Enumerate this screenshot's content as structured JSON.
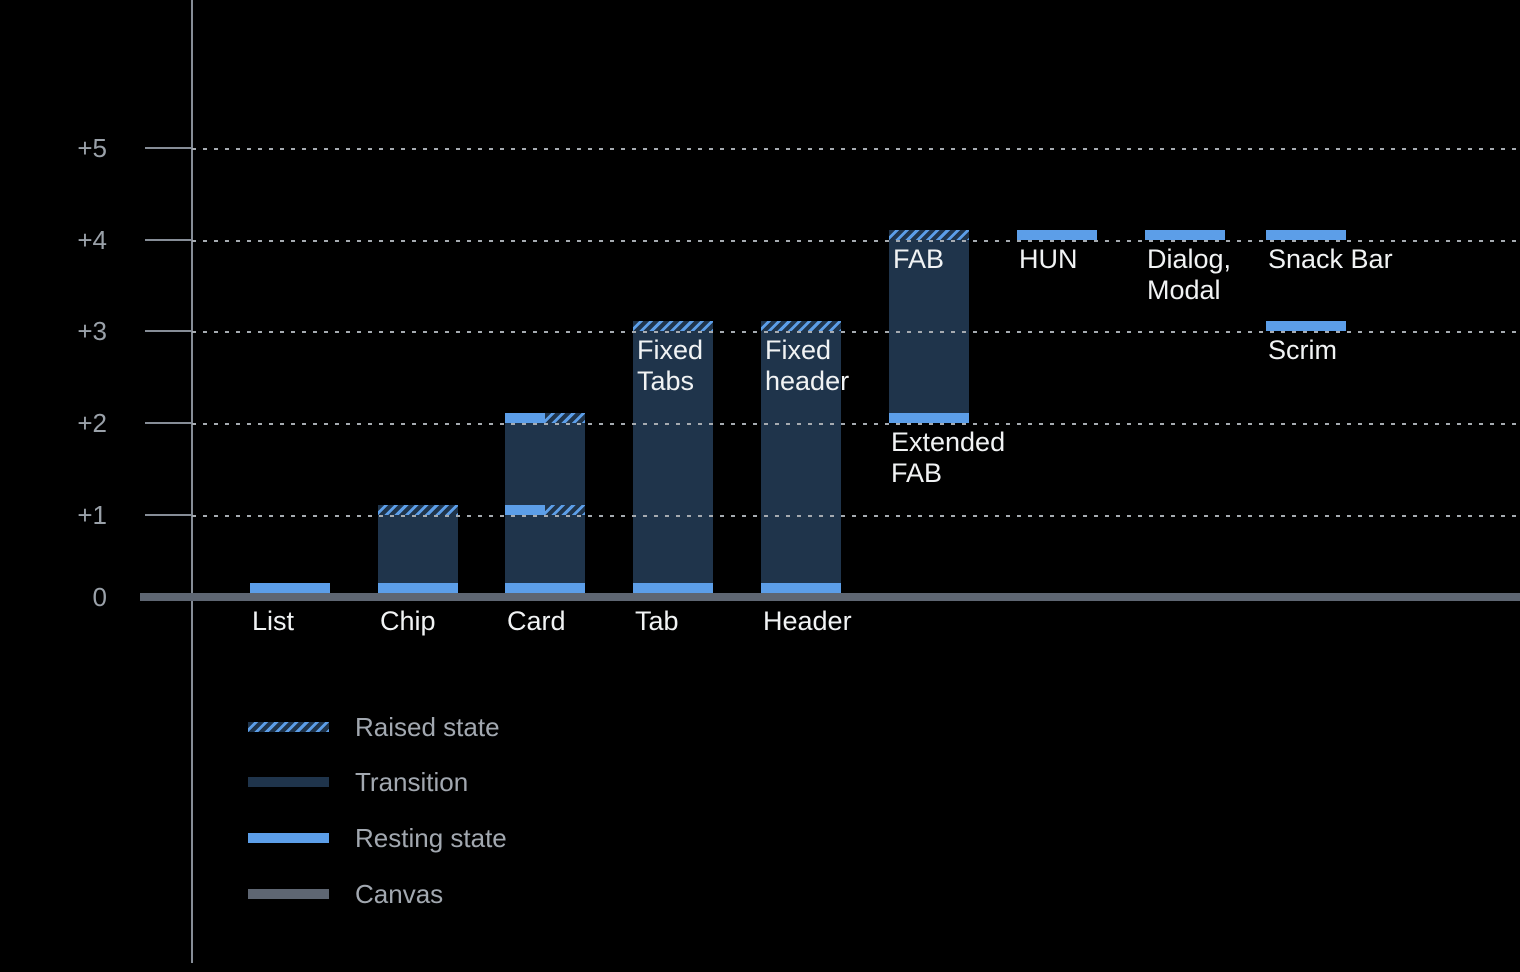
{
  "chart_data": {
    "type": "bar",
    "title": "",
    "grid": "dotted horizontal gridlines, dark background",
    "ylim": [
      0,
      5
    ],
    "yticks": [
      {
        "label": "+5",
        "value": 5
      },
      {
        "label": "+4",
        "value": 4
      },
      {
        "label": "+3",
        "value": 3
      },
      {
        "label": "+2",
        "value": 2
      },
      {
        "label": "+1",
        "value": 1
      },
      {
        "label": "0",
        "value": 0
      }
    ],
    "bars": [
      {
        "name": "list",
        "col": 0,
        "axis_label": "List",
        "bands": [
          {
            "level": 0,
            "type": "resting"
          }
        ]
      },
      {
        "name": "chip",
        "col": 1,
        "axis_label": "Chip",
        "transition": [
          0,
          1
        ],
        "bands": [
          {
            "level": 0,
            "type": "resting"
          },
          {
            "level": 1,
            "type": "raised"
          }
        ]
      },
      {
        "name": "card",
        "col": 2,
        "axis_label": "Card",
        "transition": [
          0,
          2
        ],
        "bands": [
          {
            "level": 0,
            "type": "resting"
          },
          {
            "level": 1,
            "type": "split"
          },
          {
            "level": 2,
            "type": "split"
          }
        ]
      },
      {
        "name": "tab",
        "col": 3,
        "axis_label": "Tab",
        "transition": [
          0,
          3
        ],
        "bands": [
          {
            "level": 0,
            "type": "resting"
          },
          {
            "level": 3,
            "type": "raised"
          }
        ],
        "inner_label": "Fixed\nTabs"
      },
      {
        "name": "header",
        "col": 4,
        "axis_label": "Header",
        "transition": [
          0,
          3
        ],
        "bands": [
          {
            "level": 0,
            "type": "resting"
          },
          {
            "level": 3,
            "type": "raised"
          }
        ],
        "inner_label": "Fixed\nheader"
      },
      {
        "name": "fab",
        "col": 5,
        "transition": [
          2,
          4
        ],
        "bands": [
          {
            "level": 2,
            "type": "resting"
          },
          {
            "level": 4,
            "type": "raised"
          }
        ],
        "inner_label": "FAB",
        "below_label": {
          "text": "Extended\nFAB",
          "level": 2
        }
      },
      {
        "name": "hun",
        "col": 6,
        "bands": [
          {
            "level": 4,
            "type": "resting"
          }
        ],
        "below_label": {
          "text": "HUN",
          "level": 4
        }
      },
      {
        "name": "dialog-modal",
        "col": 7,
        "bands": [
          {
            "level": 4,
            "type": "resting"
          }
        ],
        "below_label": {
          "text": "Dialog,\nModal",
          "level": 4
        }
      },
      {
        "name": "snack-bar",
        "col": 8,
        "bands": [
          {
            "level": 4,
            "type": "resting"
          }
        ],
        "below_label": {
          "text": "Snack Bar",
          "level": 4
        }
      },
      {
        "name": "scrim",
        "col": 8,
        "bands": [
          {
            "level": 3,
            "type": "resting"
          }
        ],
        "below_label": {
          "text": "Scrim",
          "level": 3
        }
      }
    ]
  },
  "legend": {
    "items": [
      {
        "type": "raised",
        "label": "Raised state"
      },
      {
        "type": "transition",
        "label": "Transition"
      },
      {
        "type": "resting",
        "label": "Resting state"
      },
      {
        "type": "canvas",
        "label": "Canvas"
      }
    ]
  },
  "colors": {
    "background": "#000000",
    "resting": "#5C9EE8",
    "transition": "#1F344B",
    "hatch_stripe": "#5C9EE8",
    "canvas": "#5E6672",
    "grid": "#A6ABB1",
    "axis_line": "#868D97",
    "ytick_text": "#9AA1A9",
    "label_text": "#F1F3F4",
    "legend_text": "#A2A8B0"
  }
}
